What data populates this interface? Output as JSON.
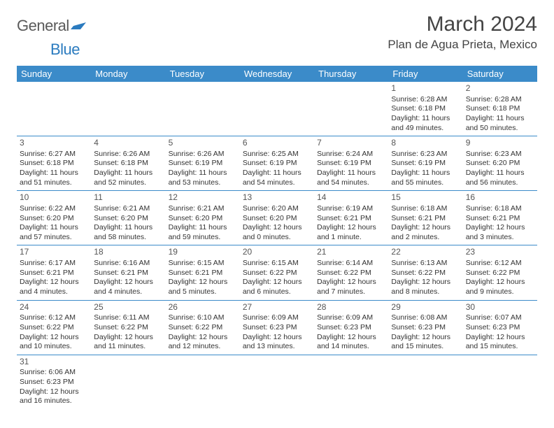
{
  "logo": {
    "text1": "General",
    "text2": "Blue"
  },
  "title": "March 2024",
  "location": "Plan de Agua Prieta, Mexico",
  "colors": {
    "header_bg": "#3b8bc9",
    "header_text": "#ffffff",
    "border": "#3b8bc9",
    "logo_gray": "#5a5a5a",
    "logo_blue": "#2b7bbf",
    "text": "#333333"
  },
  "dayNames": [
    "Sunday",
    "Monday",
    "Tuesday",
    "Wednesday",
    "Thursday",
    "Friday",
    "Saturday"
  ],
  "weeks": [
    [
      null,
      null,
      null,
      null,
      null,
      {
        "d": "1",
        "rise": "6:28 AM",
        "set": "6:18 PM",
        "dl": "11 hours and 49 minutes."
      },
      {
        "d": "2",
        "rise": "6:28 AM",
        "set": "6:18 PM",
        "dl": "11 hours and 50 minutes."
      }
    ],
    [
      {
        "d": "3",
        "rise": "6:27 AM",
        "set": "6:18 PM",
        "dl": "11 hours and 51 minutes."
      },
      {
        "d": "4",
        "rise": "6:26 AM",
        "set": "6:18 PM",
        "dl": "11 hours and 52 minutes."
      },
      {
        "d": "5",
        "rise": "6:26 AM",
        "set": "6:19 PM",
        "dl": "11 hours and 53 minutes."
      },
      {
        "d": "6",
        "rise": "6:25 AM",
        "set": "6:19 PM",
        "dl": "11 hours and 54 minutes."
      },
      {
        "d": "7",
        "rise": "6:24 AM",
        "set": "6:19 PM",
        "dl": "11 hours and 54 minutes."
      },
      {
        "d": "8",
        "rise": "6:23 AM",
        "set": "6:19 PM",
        "dl": "11 hours and 55 minutes."
      },
      {
        "d": "9",
        "rise": "6:23 AM",
        "set": "6:20 PM",
        "dl": "11 hours and 56 minutes."
      }
    ],
    [
      {
        "d": "10",
        "rise": "6:22 AM",
        "set": "6:20 PM",
        "dl": "11 hours and 57 minutes."
      },
      {
        "d": "11",
        "rise": "6:21 AM",
        "set": "6:20 PM",
        "dl": "11 hours and 58 minutes."
      },
      {
        "d": "12",
        "rise": "6:21 AM",
        "set": "6:20 PM",
        "dl": "11 hours and 59 minutes."
      },
      {
        "d": "13",
        "rise": "6:20 AM",
        "set": "6:20 PM",
        "dl": "12 hours and 0 minutes."
      },
      {
        "d": "14",
        "rise": "6:19 AM",
        "set": "6:21 PM",
        "dl": "12 hours and 1 minute."
      },
      {
        "d": "15",
        "rise": "6:18 AM",
        "set": "6:21 PM",
        "dl": "12 hours and 2 minutes."
      },
      {
        "d": "16",
        "rise": "6:18 AM",
        "set": "6:21 PM",
        "dl": "12 hours and 3 minutes."
      }
    ],
    [
      {
        "d": "17",
        "rise": "6:17 AM",
        "set": "6:21 PM",
        "dl": "12 hours and 4 minutes."
      },
      {
        "d": "18",
        "rise": "6:16 AM",
        "set": "6:21 PM",
        "dl": "12 hours and 4 minutes."
      },
      {
        "d": "19",
        "rise": "6:15 AM",
        "set": "6:21 PM",
        "dl": "12 hours and 5 minutes."
      },
      {
        "d": "20",
        "rise": "6:15 AM",
        "set": "6:22 PM",
        "dl": "12 hours and 6 minutes."
      },
      {
        "d": "21",
        "rise": "6:14 AM",
        "set": "6:22 PM",
        "dl": "12 hours and 7 minutes."
      },
      {
        "d": "22",
        "rise": "6:13 AM",
        "set": "6:22 PM",
        "dl": "12 hours and 8 minutes."
      },
      {
        "d": "23",
        "rise": "6:12 AM",
        "set": "6:22 PM",
        "dl": "12 hours and 9 minutes."
      }
    ],
    [
      {
        "d": "24",
        "rise": "6:12 AM",
        "set": "6:22 PM",
        "dl": "12 hours and 10 minutes."
      },
      {
        "d": "25",
        "rise": "6:11 AM",
        "set": "6:22 PM",
        "dl": "12 hours and 11 minutes."
      },
      {
        "d": "26",
        "rise": "6:10 AM",
        "set": "6:22 PM",
        "dl": "12 hours and 12 minutes."
      },
      {
        "d": "27",
        "rise": "6:09 AM",
        "set": "6:23 PM",
        "dl": "12 hours and 13 minutes."
      },
      {
        "d": "28",
        "rise": "6:09 AM",
        "set": "6:23 PM",
        "dl": "12 hours and 14 minutes."
      },
      {
        "d": "29",
        "rise": "6:08 AM",
        "set": "6:23 PM",
        "dl": "12 hours and 15 minutes."
      },
      {
        "d": "30",
        "rise": "6:07 AM",
        "set": "6:23 PM",
        "dl": "12 hours and 15 minutes."
      }
    ],
    [
      {
        "d": "31",
        "rise": "6:06 AM",
        "set": "6:23 PM",
        "dl": "12 hours and 16 minutes."
      },
      null,
      null,
      null,
      null,
      null,
      null
    ]
  ],
  "labels": {
    "sunrise": "Sunrise:",
    "sunset": "Sunset:",
    "daylight": "Daylight:"
  }
}
